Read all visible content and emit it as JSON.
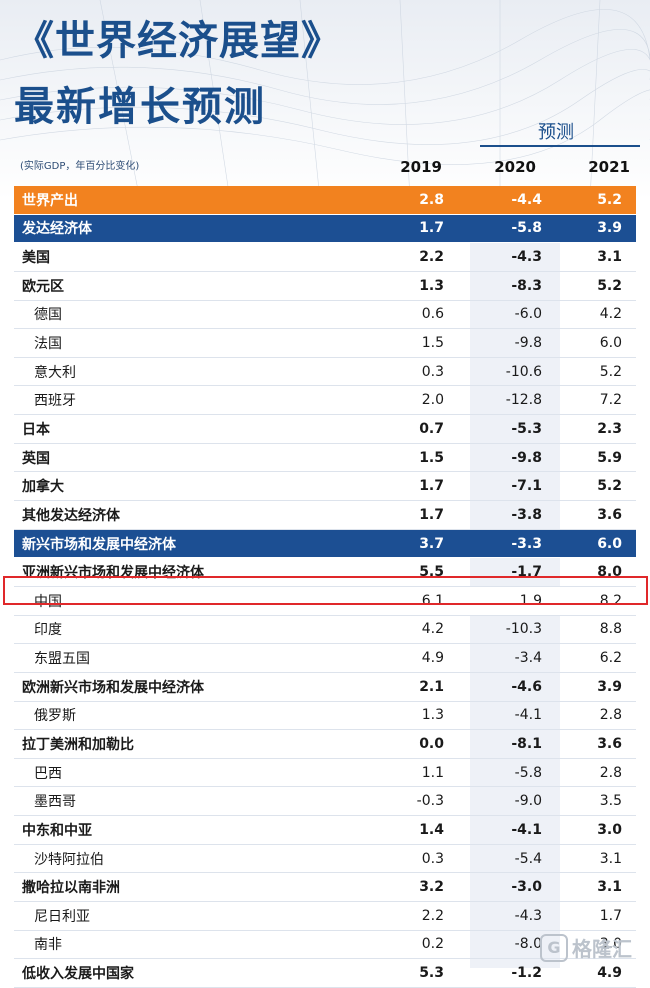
{
  "header": {
    "title_line1": "《世界经济展望》",
    "title_line2": "最新增长预测",
    "forecast_label": "预测",
    "subtitle": "(实际GDP，年百分比变化)",
    "years": [
      "2019",
      "2020",
      "2021"
    ]
  },
  "colors": {
    "title_blue": "#1b4f8c",
    "orange": "#f2821f",
    "blue_band": "#1c4f93",
    "highlight_red": "#e0282a"
  },
  "rows": [
    {
      "label": "世界产出",
      "v2019": "2.8",
      "v2020": "-4.4",
      "v2021": "5.2"
    },
    {
      "label": "发达经济体",
      "v2019": "1.7",
      "v2020": "-5.8",
      "v2021": "3.9"
    },
    {
      "label": "美国",
      "v2019": "2.2",
      "v2020": "-4.3",
      "v2021": "3.1"
    },
    {
      "label": "欧元区",
      "v2019": "1.3",
      "v2020": "-8.3",
      "v2021": "5.2"
    },
    {
      "label": "德国",
      "v2019": "0.6",
      "v2020": "-6.0",
      "v2021": "4.2"
    },
    {
      "label": "法国",
      "v2019": "1.5",
      "v2020": "-9.8",
      "v2021": "6.0"
    },
    {
      "label": "意大利",
      "v2019": "0.3",
      "v2020": "-10.6",
      "v2021": "5.2"
    },
    {
      "label": "西班牙",
      "v2019": "2.0",
      "v2020": "-12.8",
      "v2021": "7.2"
    },
    {
      "label": "日本",
      "v2019": "0.7",
      "v2020": "-5.3",
      "v2021": "2.3"
    },
    {
      "label": "英国",
      "v2019": "1.5",
      "v2020": "-9.8",
      "v2021": "5.9"
    },
    {
      "label": "加拿大",
      "v2019": "1.7",
      "v2020": "-7.1",
      "v2021": "5.2"
    },
    {
      "label": "其他发达经济体",
      "v2019": "1.7",
      "v2020": "-3.8",
      "v2021": "3.6"
    },
    {
      "label": "新兴市场和发展中经济体",
      "v2019": "3.7",
      "v2020": "-3.3",
      "v2021": "6.0"
    },
    {
      "label": "亚洲新兴市场和发展中经济体",
      "v2019": "5.5",
      "v2020": "-1.7",
      "v2021": "8.0"
    },
    {
      "label": "中国",
      "v2019": "6.1",
      "v2020": "1.9",
      "v2021": "8.2"
    },
    {
      "label": "印度",
      "v2019": "4.2",
      "v2020": "-10.3",
      "v2021": "8.8"
    },
    {
      "label": "东盟五国",
      "v2019": "4.9",
      "v2020": "-3.4",
      "v2021": "6.2"
    },
    {
      "label": "欧洲新兴市场和发展中经济体",
      "v2019": "2.1",
      "v2020": "-4.6",
      "v2021": "3.9"
    },
    {
      "label": "俄罗斯",
      "v2019": "1.3",
      "v2020": "-4.1",
      "v2021": "2.8"
    },
    {
      "label": "拉丁美洲和加勒比",
      "v2019": "0.0",
      "v2020": "-8.1",
      "v2021": "3.6"
    },
    {
      "label": "巴西",
      "v2019": "1.1",
      "v2020": "-5.8",
      "v2021": "2.8"
    },
    {
      "label": "墨西哥",
      "v2019": "-0.3",
      "v2020": "-9.0",
      "v2021": "3.5"
    },
    {
      "label": "中东和中亚",
      "v2019": "1.4",
      "v2020": "-4.1",
      "v2021": "3.0"
    },
    {
      "label": "沙特阿拉伯",
      "v2019": "0.3",
      "v2020": "-5.4",
      "v2021": "3.1"
    },
    {
      "label": "撒哈拉以南非洲",
      "v2019": "3.2",
      "v2020": "-3.0",
      "v2021": "3.1"
    },
    {
      "label": "尼日利亚",
      "v2019": "2.2",
      "v2020": "-4.3",
      "v2021": "1.7"
    },
    {
      "label": "南非",
      "v2019": "0.2",
      "v2020": "-8.0",
      "v2021": "3.0"
    },
    {
      "label": "低收入发展中国家",
      "v2019": "5.3",
      "v2020": "-1.2",
      "v2021": "4.9"
    }
  ],
  "watermark": {
    "icon": "gelonghui-logo-icon",
    "logo_glyph": "G",
    "text": "格隆汇"
  }
}
